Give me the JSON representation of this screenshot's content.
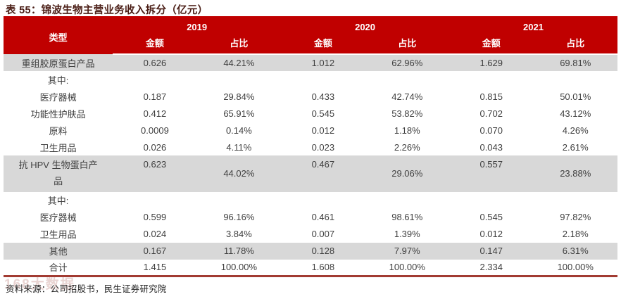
{
  "title": "表 55：锦波生物主营业务收入拆分（亿元）",
  "table": {
    "type_header": "类型",
    "year_groups": [
      {
        "year": "2019",
        "amount_label": "金额",
        "share_label": "占比"
      },
      {
        "year": "2020",
        "amount_label": "金额",
        "share_label": "占比"
      },
      {
        "year": "2021",
        "amount_label": "金额",
        "share_label": "占比"
      }
    ],
    "rows": [
      {
        "label": "重组胶原蛋白产品",
        "values": [
          "0.626",
          "44.21%",
          "1.012",
          "62.96%",
          "1.629",
          "69.81%"
        ]
      },
      {
        "label": "其中:",
        "values": [
          "",
          "",
          "",
          "",
          "",
          ""
        ]
      },
      {
        "label": "医疗器械",
        "values": [
          "0.187",
          "29.84%",
          "0.433",
          "42.74%",
          "0.815",
          "50.01%"
        ]
      },
      {
        "label": "功能性护肤品",
        "values": [
          "0.412",
          "65.91%",
          "0.545",
          "53.82%",
          "0.702",
          "43.12%"
        ]
      },
      {
        "label": "原料",
        "values": [
          "0.0009",
          "0.14%",
          "0.012",
          "1.18%",
          "0.070",
          "4.26%"
        ]
      },
      {
        "label": "卫生用品",
        "values": [
          "0.026",
          "4.11%",
          "0.023",
          "2.26%",
          "0.043",
          "2.61%"
        ]
      },
      {
        "label": "抗 HPV 生物蛋白产品",
        "values": [
          "0.623",
          "44.02%",
          "0.467",
          "29.06%",
          "0.557",
          "23.88%"
        ]
      },
      {
        "label": "其中:",
        "values": [
          "",
          "",
          "",
          "",
          "",
          ""
        ]
      },
      {
        "label": "医疗器械",
        "values": [
          "0.599",
          "96.16%",
          "0.461",
          "98.61%",
          "0.545",
          "97.82%"
        ]
      },
      {
        "label": "卫生用品",
        "values": [
          "0.024",
          "3.84%",
          "0.007",
          "1.39%",
          "0.012",
          "2.18%"
        ]
      },
      {
        "label": "其他",
        "values": [
          "0.167",
          "11.78%",
          "0.128",
          "7.97%",
          "0.147",
          "6.31%"
        ]
      },
      {
        "label": "合计",
        "values": [
          "1.415",
          "100.00%",
          "1.608",
          "100.00%",
          "2.334",
          "100.00%"
        ]
      }
    ]
  },
  "source": "资料来源：公司招股书，民生证券研究院",
  "watermark": "168大数据",
  "colors": {
    "header_bg": "#c00000",
    "shaded_row": "#d8d8d8",
    "title_text": "#4a1d15",
    "body_text": "#3f3f3f",
    "bottom_rule": "#a23b32"
  }
}
